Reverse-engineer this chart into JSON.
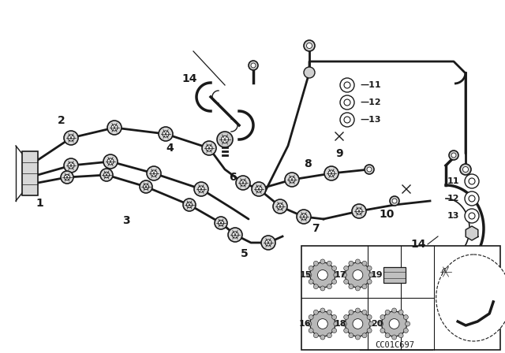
{
  "bg_color": "#ffffff",
  "line_color": "#1a1a1a",
  "diagram_code": "CC01C697",
  "main_pipe_color": "#1a1a1a",
  "fitting_fill": "#e8e8e8",
  "fitting_fill_dark": "#c0c0c0"
}
